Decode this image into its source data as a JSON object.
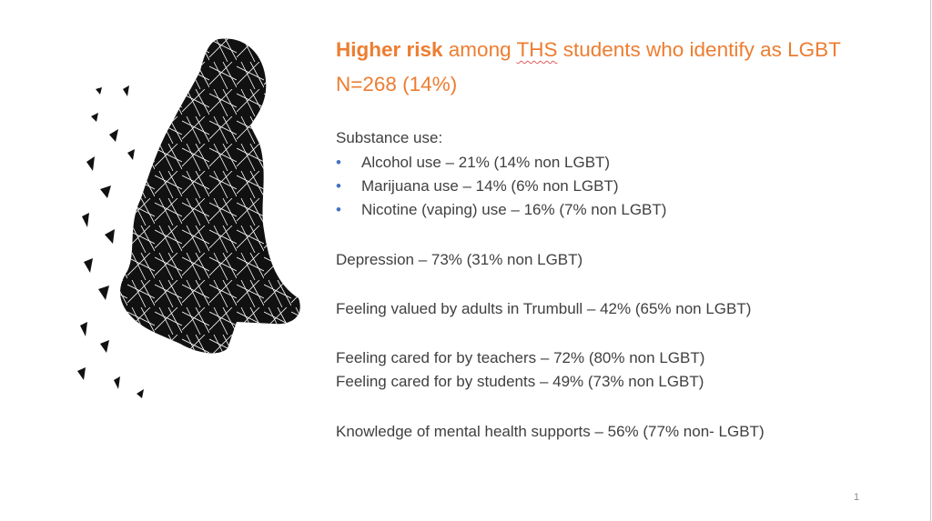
{
  "slide": {
    "title_bold": "Higher risk",
    "title_pre": " among ",
    "title_ths": "THS",
    "title_post": " students who identify as LGBT N=268 (14%)",
    "substance_heading": "Substance use:",
    "bullets": [
      "Alcohol use – 21% (14% non LGBT)",
      "Marijuana use – 14% (6% non LGBT)",
      "Nicotine (vaping) use – 16% (7% non LGBT)"
    ],
    "bullet_char": "•",
    "lines": [
      "Depression – 73% (31% non LGBT)",
      "Feeling valued by adults in Trumbull – 42% (65% non LGBT)",
      "Feeling cared for by teachers – 72% (80% non LGBT)",
      "Feeling cared for by students – 49% (73% non LGBT)",
      "Knowledge of mental health supports – 56% (77% non- LGBT)"
    ],
    "page_number": "1",
    "image": "shattered-thinking-person-silhouette"
  },
  "colors": {
    "title": "#ED7D31",
    "body": "#404040",
    "bullet": "#4472C4"
  }
}
